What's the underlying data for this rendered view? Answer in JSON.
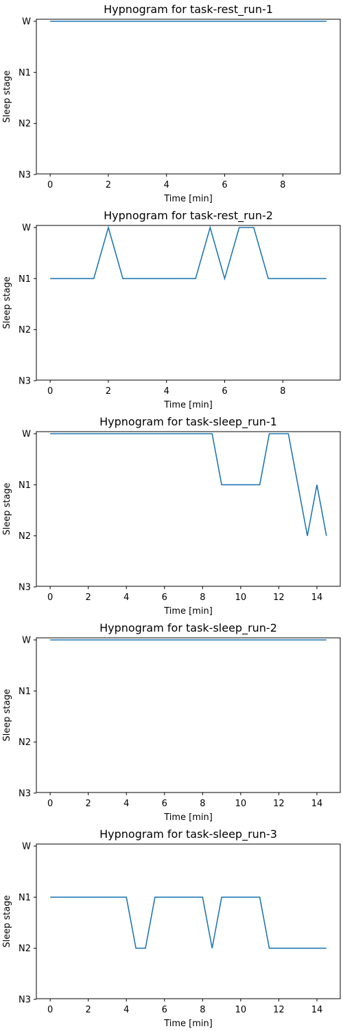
{
  "chart_data": [
    {
      "type": "line",
      "title": "Hypnogram for task-rest_run-1",
      "xlabel": "Time [min]",
      "ylabel": "Sleep stage",
      "yticks": [
        "W",
        "N1",
        "N2",
        "N3"
      ],
      "xticks": [
        0,
        2,
        4,
        6,
        8
      ],
      "xlim": [
        -0.475,
        9.975
      ],
      "grid": false,
      "legend": "none",
      "series": [
        {
          "color": "#1f77b4",
          "x": [
            0,
            0.5,
            1,
            1.5,
            2,
            2.5,
            3,
            3.5,
            4,
            4.5,
            5,
            5.5,
            6,
            6.5,
            7,
            7.5,
            8,
            8.5,
            9,
            9.5
          ],
          "y": [
            "W",
            "W",
            "W",
            "W",
            "W",
            "W",
            "W",
            "W",
            "W",
            "W",
            "W",
            "W",
            "W",
            "W",
            "W",
            "W",
            "W",
            "W",
            "W",
            "W"
          ]
        }
      ]
    },
    {
      "type": "line",
      "title": "Hypnogram for task-rest_run-2",
      "xlabel": "Time [min]",
      "ylabel": "Sleep stage",
      "yticks": [
        "W",
        "N1",
        "N2",
        "N3"
      ],
      "xticks": [
        0,
        2,
        4,
        6,
        8
      ],
      "xlim": [
        -0.475,
        9.975
      ],
      "grid": false,
      "legend": "none",
      "series": [
        {
          "color": "#1f77b4",
          "x": [
            0,
            0.5,
            1,
            1.5,
            2,
            2.5,
            3,
            3.5,
            4,
            4.5,
            5,
            5.5,
            6,
            6.5,
            7,
            7.5,
            8,
            8.5,
            9,
            9.5
          ],
          "y": [
            "N1",
            "N1",
            "N1",
            "N1",
            "W",
            "N1",
            "N1",
            "N1",
            "N1",
            "N1",
            "N1",
            "W",
            "N1",
            "W",
            "W",
            "N1",
            "N1",
            "N1",
            "N1",
            "N1"
          ]
        }
      ]
    },
    {
      "type": "line",
      "title": "Hypnogram for task-sleep_run-1",
      "xlabel": "Time [min]",
      "ylabel": "Sleep stage",
      "yticks": [
        "W",
        "N1",
        "N2",
        "N3"
      ],
      "xticks": [
        0,
        2,
        4,
        6,
        8,
        10,
        12,
        14
      ],
      "xlim": [
        -0.725,
        15.225
      ],
      "grid": false,
      "legend": "none",
      "series": [
        {
          "color": "#1f77b4",
          "x": [
            0,
            0.5,
            1,
            1.5,
            2,
            2.5,
            3,
            3.5,
            4,
            4.5,
            5,
            5.5,
            6,
            6.5,
            7,
            7.5,
            8,
            8.5,
            9,
            9.5,
            10,
            10.5,
            11,
            11.5,
            12,
            12.5,
            13,
            13.5,
            14,
            14.5
          ],
          "y": [
            "W",
            "W",
            "W",
            "W",
            "W",
            "W",
            "W",
            "W",
            "W",
            "W",
            "W",
            "W",
            "W",
            "W",
            "W",
            "W",
            "W",
            "W",
            "N1",
            "N1",
            "N1",
            "N1",
            "N1",
            "W",
            "W",
            "W",
            "N1",
            "N2",
            "N1",
            "N2"
          ]
        }
      ]
    },
    {
      "type": "line",
      "title": "Hypnogram for task-sleep_run-2",
      "xlabel": "Time [min]",
      "ylabel": "Sleep stage",
      "yticks": [
        "W",
        "N1",
        "N2",
        "N3"
      ],
      "xticks": [
        0,
        2,
        4,
        6,
        8,
        10,
        12,
        14
      ],
      "xlim": [
        -0.725,
        15.225
      ],
      "grid": false,
      "legend": "none",
      "series": [
        {
          "color": "#1f77b4",
          "x": [
            0,
            0.5,
            1,
            1.5,
            2,
            2.5,
            3,
            3.5,
            4,
            4.5,
            5,
            5.5,
            6,
            6.5,
            7,
            7.5,
            8,
            8.5,
            9,
            9.5,
            10,
            10.5,
            11,
            11.5,
            12,
            12.5,
            13,
            13.5,
            14,
            14.5
          ],
          "y": [
            "W",
            "W",
            "W",
            "W",
            "W",
            "W",
            "W",
            "W",
            "W",
            "W",
            "W",
            "W",
            "W",
            "W",
            "W",
            "W",
            "W",
            "W",
            "W",
            "W",
            "W",
            "W",
            "W",
            "W",
            "W",
            "W",
            "W",
            "W",
            "W",
            "W"
          ]
        }
      ]
    },
    {
      "type": "line",
      "title": "Hypnogram for task-sleep_run-3",
      "xlabel": "Time [min]",
      "ylabel": "Sleep stage",
      "yticks": [
        "W",
        "N1",
        "N2",
        "N3"
      ],
      "xticks": [
        0,
        2,
        4,
        6,
        8,
        10,
        12,
        14
      ],
      "xlim": [
        -0.725,
        15.225
      ],
      "grid": false,
      "legend": "none",
      "series": [
        {
          "color": "#1f77b4",
          "x": [
            0,
            0.5,
            1,
            1.5,
            2,
            2.5,
            3,
            3.5,
            4,
            4.5,
            5,
            5.5,
            6,
            6.5,
            7,
            7.5,
            8,
            8.5,
            9,
            9.5,
            10,
            10.5,
            11,
            11.5,
            12,
            12.5,
            13,
            13.5,
            14,
            14.5
          ],
          "y": [
            "N1",
            "N1",
            "N1",
            "N1",
            "N1",
            "N1",
            "N1",
            "N1",
            "N1",
            "N2",
            "N2",
            "N1",
            "N1",
            "N1",
            "N1",
            "N1",
            "N1",
            "N2",
            "N1",
            "N1",
            "N1",
            "N1",
            "N1",
            "N2",
            "N2",
            "N2",
            "N2",
            "N2",
            "N2",
            "N2"
          ]
        }
      ]
    }
  ]
}
